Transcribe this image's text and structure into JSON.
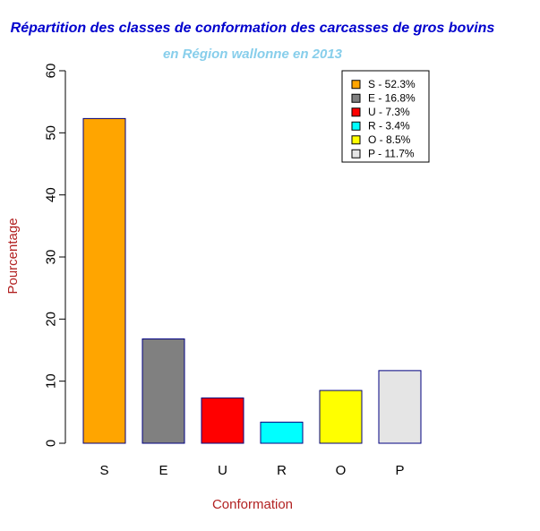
{
  "chart_data": {
    "type": "bar",
    "title": "Répartition des classes de conformation des carcasses de gros bovins",
    "subtitle": "en Région wallonne en 2013",
    "xlabel": "Conformation",
    "ylabel": "Pourcentage",
    "categories": [
      "S",
      "E",
      "U",
      "R",
      "O",
      "P"
    ],
    "values": [
      52.3,
      16.8,
      7.3,
      3.4,
      8.5,
      11.7
    ],
    "ylim": [
      0,
      60
    ],
    "yticks": [
      0,
      10,
      20,
      30,
      40,
      50,
      60
    ],
    "grid": false,
    "legend_position": "top-right",
    "legend": [
      "S - 52.3%",
      "E - 16.8%",
      "U - 7.3%",
      "R - 3.4%",
      "O - 8.5%",
      "P - 11.7%"
    ],
    "colors": [
      "#FFA500",
      "#808080",
      "#FF0000",
      "#00FFFF",
      "#FFFF00",
      "#E5E5E5"
    ],
    "colors_meta": {
      "title": "#0000CD",
      "subtitle": "#87CEEB",
      "axis_label": "#B22222",
      "bar_border": "#000080"
    }
  }
}
